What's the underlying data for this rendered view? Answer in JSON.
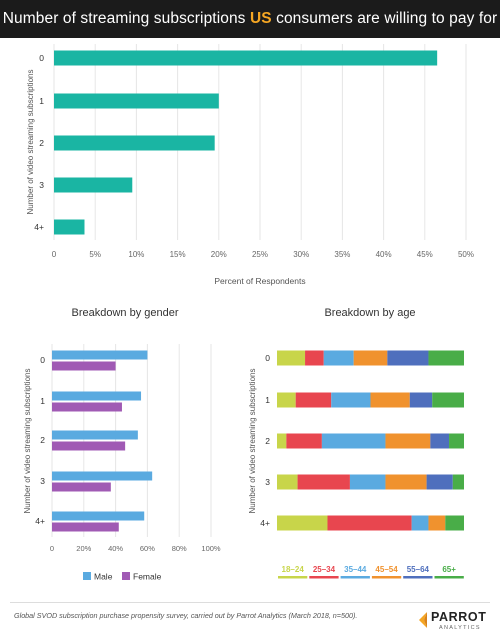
{
  "header": {
    "title_part1": "Number of streaming subscriptions ",
    "title_highlight": "US",
    "title_part2": " consumers are willing to pay for"
  },
  "colors": {
    "teal": "#1ab5a3",
    "male": "#5aaae0",
    "female": "#a05ab4",
    "age": [
      "#c8d54a",
      "#e8464f",
      "#5aaae0",
      "#f0922e",
      "#4f6fbd",
      "#49ad48"
    ]
  },
  "chart_data": [
    {
      "type": "bar",
      "orientation": "horizontal",
      "categories": [
        "0",
        "1",
        "2",
        "3",
        "4+"
      ],
      "values": [
        46.5,
        20,
        19.5,
        9.5,
        3.7
      ],
      "xlabel": "Percent of Respondents",
      "ylabel": "Number of video streaming subscriptions",
      "xlim": [
        0,
        50
      ],
      "xticks": [
        "0",
        "5%",
        "10%",
        "15%",
        "20%",
        "25%",
        "30%",
        "35%",
        "40%",
        "45%",
        "50%"
      ],
      "grid": true
    },
    {
      "type": "bar",
      "orientation": "horizontal",
      "title": "Breakdown by gender",
      "categories": [
        "0",
        "1",
        "2",
        "3",
        "4+"
      ],
      "series": [
        {
          "name": "Male",
          "values": [
            60,
            56,
            54,
            63,
            58
          ]
        },
        {
          "name": "Female",
          "values": [
            40,
            44,
            46,
            37,
            42
          ]
        }
      ],
      "ylabel": "Number of video streaming subscriptions",
      "xlim": [
        0,
        100
      ],
      "xticks": [
        "0",
        "20%",
        "40%",
        "60%",
        "80%",
        "100%"
      ],
      "legend": "bottom",
      "grid": true
    },
    {
      "type": "bar",
      "orientation": "horizontal",
      "stacked": true,
      "title": "Breakdown by age",
      "categories": [
        "0",
        "1",
        "2",
        "3",
        "4+"
      ],
      "series": [
        {
          "name": "18–24",
          "values": [
            15,
            10,
            5,
            11,
            27
          ]
        },
        {
          "name": "25–34",
          "values": [
            10,
            19,
            19,
            28,
            45
          ]
        },
        {
          "name": "35–44",
          "values": [
            16,
            21,
            34,
            19,
            9
          ]
        },
        {
          "name": "45–54",
          "values": [
            18,
            21,
            24,
            22,
            9
          ]
        },
        {
          "name": "55–64",
          "values": [
            22,
            12,
            10,
            14,
            0
          ]
        },
        {
          "name": "65+",
          "values": [
            19,
            17,
            8,
            6,
            10
          ]
        }
      ],
      "ylabel": "Number of video streaming subscriptions",
      "legend": "bottom"
    }
  ],
  "footer": {
    "note_prefix": "Global SVOD subscription purchase propensity survey, carried out by ",
    "note_brand": "Parrot Analytics",
    "note_suffix": " (March 2018, n=500).",
    "logo_name": "PARROT",
    "logo_sub": "ANALYTICS"
  }
}
